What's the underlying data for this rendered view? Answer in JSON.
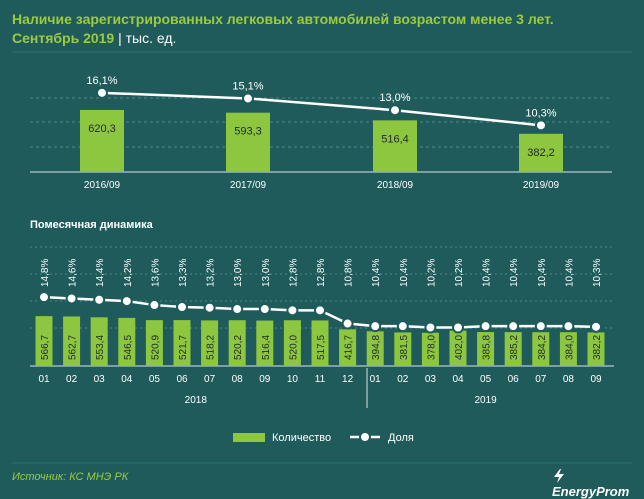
{
  "title_line1": "Наличие зарегистрированных легковых автомобилей возрастом менее 3 лет.",
  "title_line2": "Сентябрь 2019",
  "title_unit": "| тыс. ед.",
  "source": "Источник: КС МНЭ РК",
  "logo": "EnergyProm",
  "colors": {
    "background": "#1f5b5b",
    "bar": "#8dc63f",
    "line": "#ffffff",
    "title": "#9ccc3c"
  },
  "chart_data": [
    {
      "type": "bar+line",
      "title": "",
      "categories": [
        "2016/09",
        "2017/09",
        "2018/09",
        "2019/09"
      ],
      "series": [
        {
          "name": "Количество",
          "type": "bar",
          "values": [
            620.3,
            593.3,
            516.4,
            382.2
          ],
          "labels": [
            "620,3",
            "593,3",
            "516,4",
            "382,2"
          ]
        },
        {
          "name": "Доля",
          "type": "line",
          "values": [
            16.1,
            15.1,
            13.0,
            10.3
          ],
          "labels": [
            "16,1%",
            "15,1%",
            "13,0%",
            "10,3%"
          ]
        }
      ]
    },
    {
      "type": "bar+line",
      "title": "Помесячная  динамика",
      "categories": [
        "01",
        "02",
        "03",
        "04",
        "05",
        "06",
        "07",
        "08",
        "09",
        "10",
        "11",
        "12",
        "01",
        "02",
        "03",
        "04",
        "05",
        "06",
        "07",
        "08",
        "09"
      ],
      "groups": [
        {
          "label": "2018",
          "count": 12
        },
        {
          "label": "2019",
          "count": 9
        }
      ],
      "series": [
        {
          "name": "Количество",
          "type": "bar",
          "values": [
            566.7,
            562.7,
            553.4,
            546.5,
            520.9,
            521.7,
            518.2,
            520.2,
            516.4,
            520.0,
            517.5,
            416.7,
            394.8,
            381.5,
            378.0,
            402.0,
            385.8,
            385.2,
            384.2,
            384.0,
            382.2
          ],
          "labels": [
            "566,7",
            "562,7",
            "553,4",
            "546,5",
            "520,9",
            "521,7",
            "518,2",
            "520,2",
            "516,4",
            "520,0",
            "517,5",
            "416,7",
            "394,8",
            "381,5",
            "378,0",
            "402,0",
            "385,8",
            "385,2",
            "384,2",
            "384,0",
            "382,2"
          ]
        },
        {
          "name": "Доля",
          "type": "line",
          "values": [
            14.8,
            14.6,
            14.4,
            14.2,
            13.6,
            13.3,
            13.2,
            13.0,
            13.0,
            12.8,
            12.8,
            10.8,
            10.4,
            10.4,
            10.2,
            10.2,
            10.4,
            10.4,
            10.4,
            10.4,
            10.3
          ],
          "labels": [
            "14,8%",
            "14,6%",
            "14,4%",
            "14,2%",
            "13,6%",
            "13,3%",
            "13,2%",
            "13,0%",
            "13,0%",
            "12,8%",
            "12,8%",
            "10,8%",
            "10,4%",
            "10,4%",
            "10,2%",
            "10,2%",
            "10,4%",
            "10,4%",
            "10,4%",
            "10,4%",
            "10,3%"
          ]
        }
      ]
    }
  ],
  "legend": {
    "bar_label": "Количество",
    "line_label": "Доля"
  }
}
